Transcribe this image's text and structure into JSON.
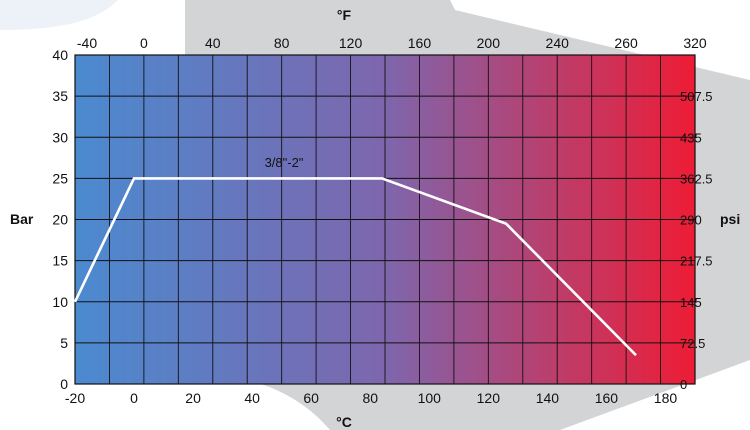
{
  "chart_data": {
    "type": "line",
    "title": "",
    "x": [
      -20,
      0,
      84,
      126,
      170
    ],
    "series": [
      {
        "name": "3/8\"-2\"",
        "values": [
          10,
          25,
          25,
          19.5,
          3.5
        ]
      }
    ],
    "annotation": "3/8\"-2\"",
    "xlim": [
      -20,
      190
    ],
    "ylim": [
      0,
      40
    ],
    "x_axis_bottom": {
      "label": "°C",
      "ticks": [
        -20,
        0,
        20,
        40,
        60,
        80,
        100,
        120,
        140,
        160,
        180
      ]
    },
    "x_axis_top": {
      "label": "°F",
      "ticks": [
        -40,
        0,
        40,
        80,
        120,
        160,
        200,
        240,
        260,
        320
      ]
    },
    "y_axis_left": {
      "label": "Bar",
      "ticks": [
        0,
        5,
        10,
        15,
        20,
        25,
        30,
        35,
        40
      ]
    },
    "y_axis_right": {
      "label": "psi",
      "ticks": [
        "0",
        "72.5",
        "145",
        "217.5",
        "290",
        "362.5",
        "435",
        "507.5"
      ]
    },
    "grid": true,
    "line_color": "#ffffff",
    "background_gradient": [
      "#4b8ad0",
      "#7e66ad",
      "#ee1c35"
    ]
  }
}
